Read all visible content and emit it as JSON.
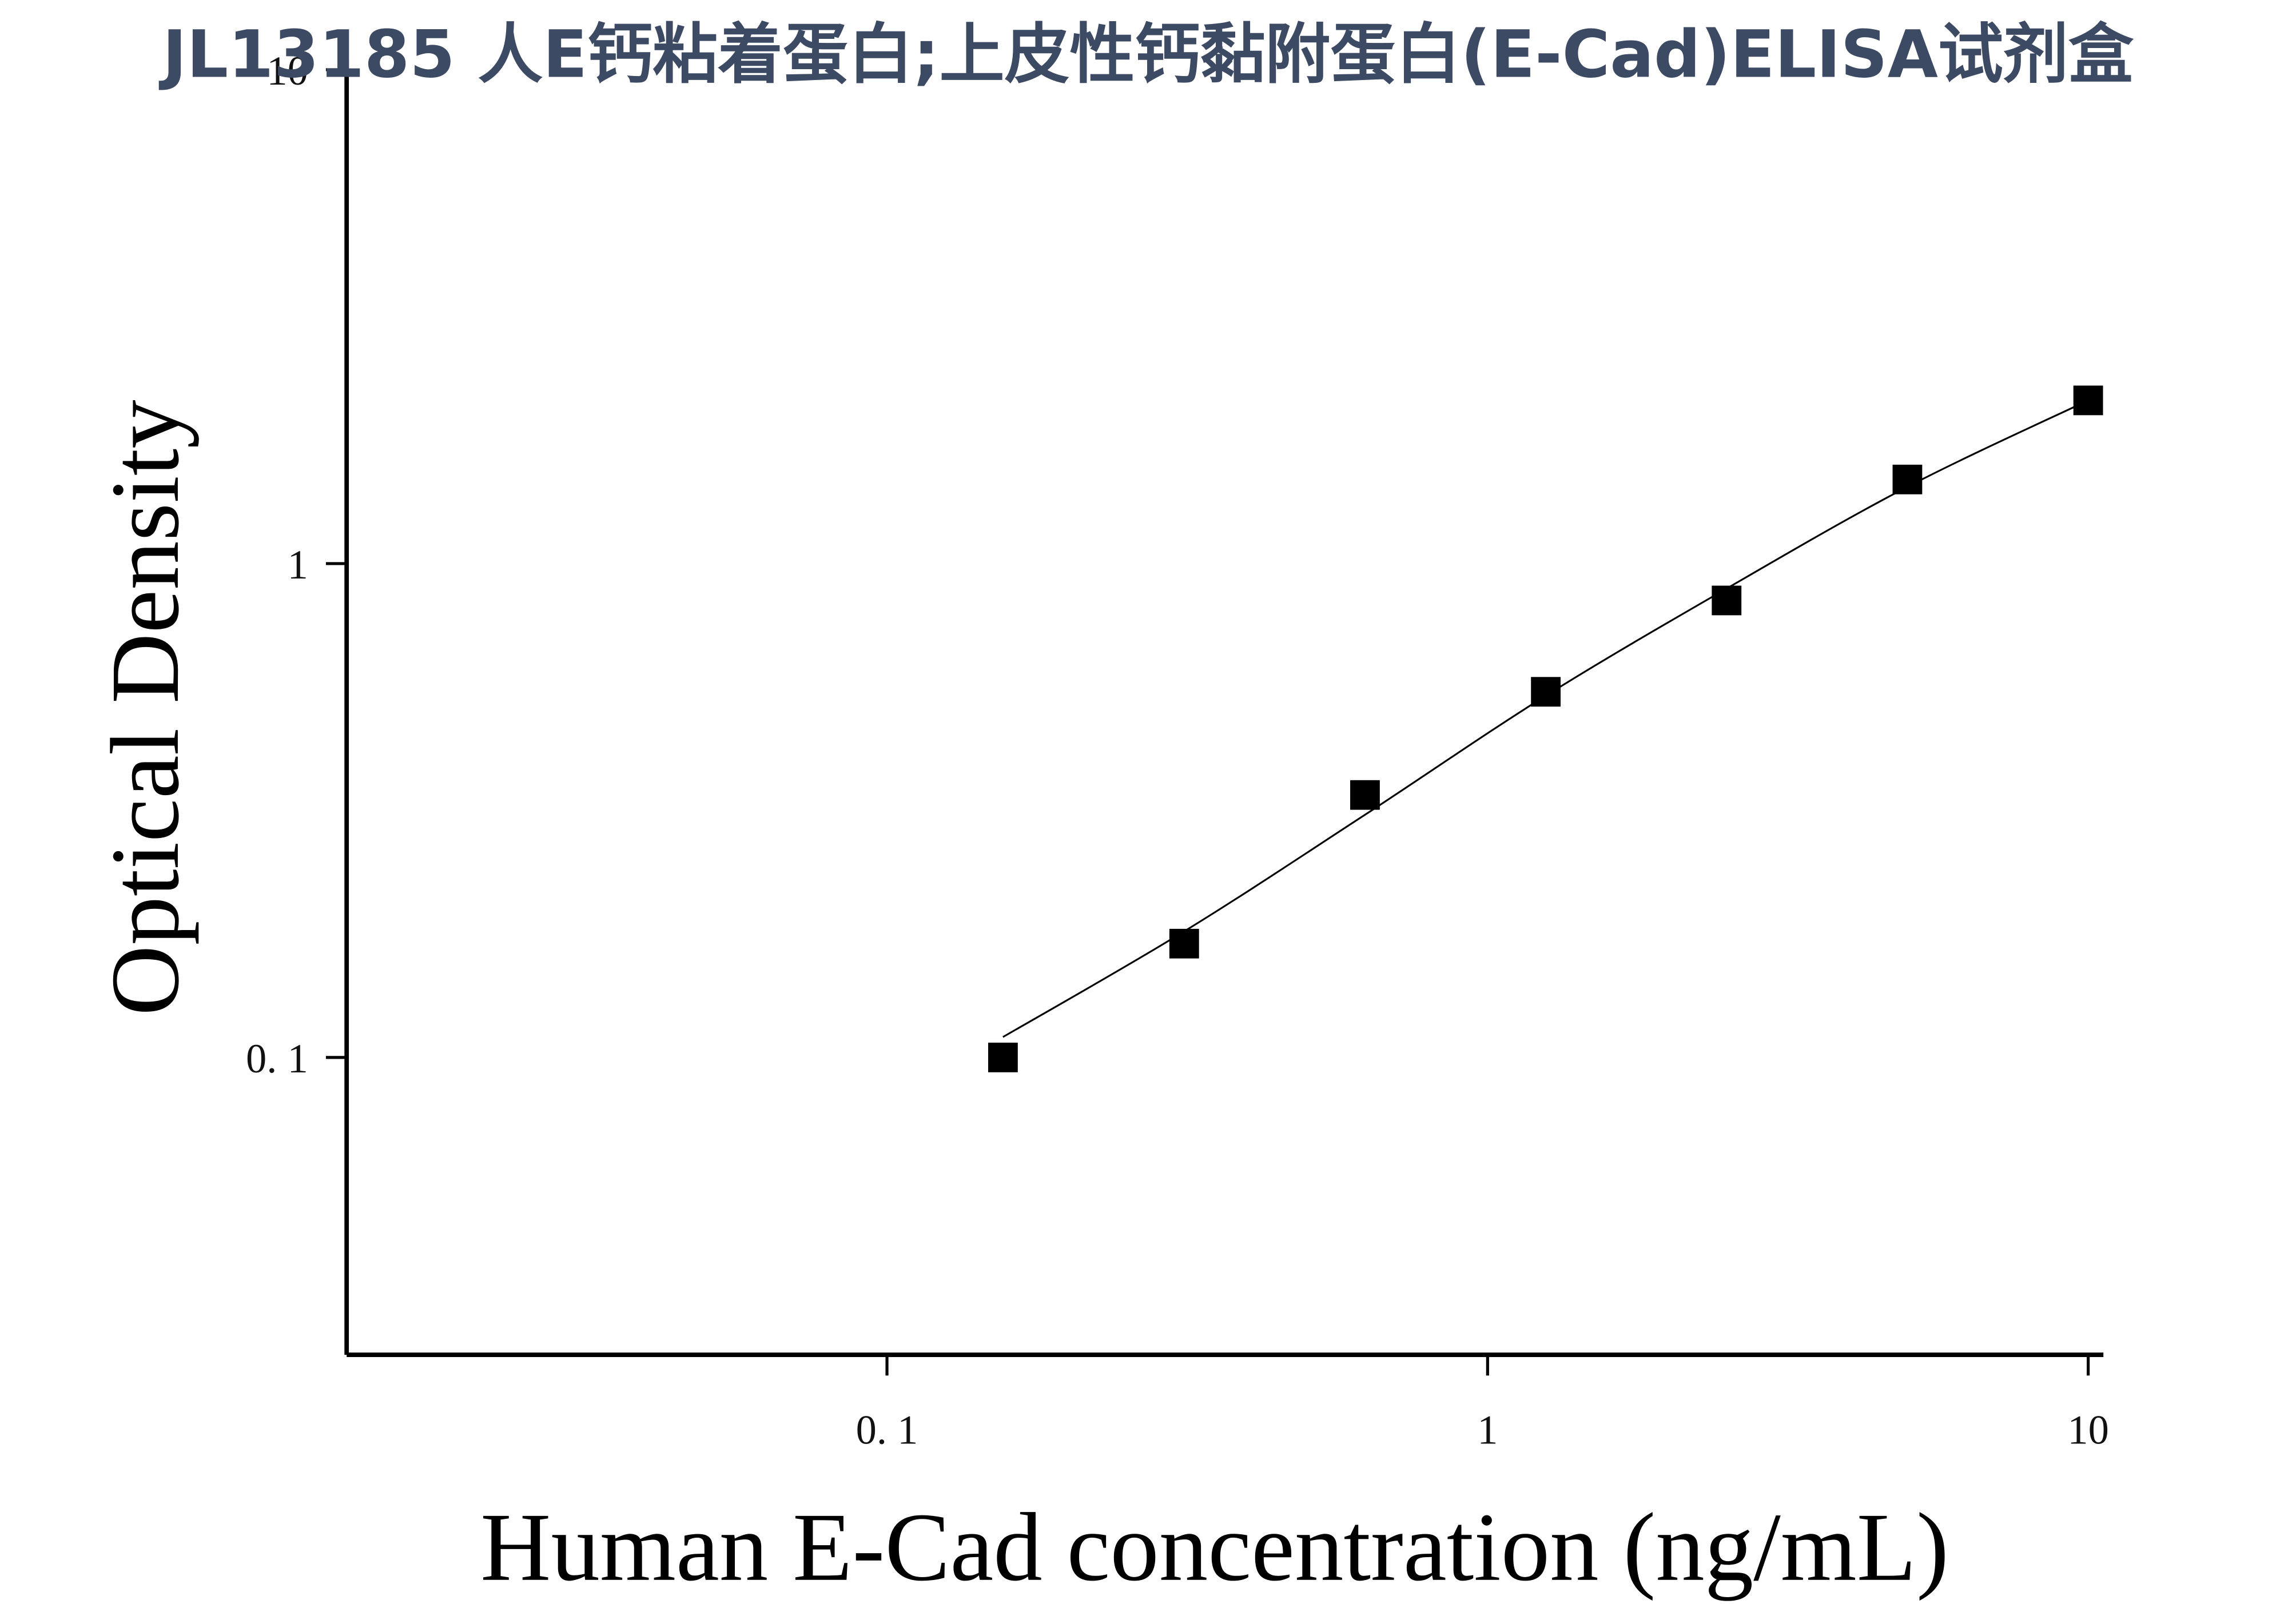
{
  "chart_data": {
    "type": "scatter",
    "title": "JL13185 人E钙粘着蛋白;上皮性钙黏附蛋白(E-Cad)ELISA试剂盒",
    "x_label": "Human E-Cad concentration (ng/mL)",
    "y_label": "Optical Density",
    "x_scale": "log",
    "y_scale": "log",
    "xlim": [
      0.0126,
      10.6
    ],
    "ylim": [
      0.025,
      10.5
    ],
    "xticks": [
      {
        "value": 0.1,
        "label": "0. 1"
      },
      1,
      10
    ],
    "yticks": [
      {
        "value": 0.1,
        "label": "0. 1"
      },
      1,
      10
    ],
    "grid": false,
    "series": [
      {
        "color": "#000000",
        "x": [
          0.156,
          0.3125,
          0.625,
          1.25,
          2.5,
          5,
          10
        ],
        "values": [
          0.1,
          0.17,
          0.34,
          0.55,
          0.842,
          1.48,
          2.14
        ]
      }
    ],
    "curve": {
      "color": "#000000",
      "x": [
        0.156,
        0.3125,
        0.625,
        1.25,
        2.5,
        5,
        10
      ],
      "values": [
        0.11,
        0.18,
        0.31,
        0.54,
        0.89,
        1.43,
        2.14
      ]
    }
  }
}
